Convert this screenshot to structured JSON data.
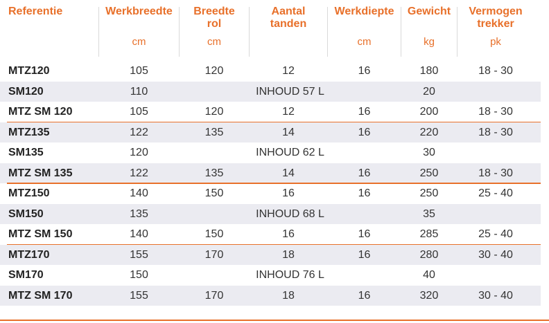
{
  "header": {
    "referentie": "Referentie",
    "werkbreedte": "Werkbreedte",
    "werkbreedte_unit": "cm",
    "breedte_rol_1": "Breedte",
    "breedte_rol_2": "rol",
    "breedte_rol_unit": "cm",
    "aantal_1": "Aantal",
    "aantal_2": "tanden",
    "werkdiepte": "Werkdiepte",
    "werkdiepte_unit": "cm",
    "gewicht": "Gewicht",
    "gewicht_unit": "kg",
    "vermogen_1": "Vermogen",
    "vermogen_2": "trekker",
    "vermogen_unit": "pk"
  },
  "rows": [
    {
      "ref": "MTZ120",
      "werkbreedte": "105",
      "rol": "120",
      "tanden": "12",
      "diepte": "16",
      "gewicht": "180",
      "pk": "18 - 30"
    },
    {
      "ref": "SM120",
      "werkbreedte": "110",
      "inhoud": "INHOUD 57 L",
      "gewicht": "20"
    },
    {
      "ref": "MTZ SM 120",
      "werkbreedte": "105",
      "rol": "120",
      "tanden": "12",
      "diepte": "16",
      "gewicht": "200",
      "pk": "18 - 30"
    },
    {
      "ref": "MTZ135",
      "werkbreedte": "122",
      "rol": "135",
      "tanden": "14",
      "diepte": "16",
      "gewicht": "220",
      "pk": "18 - 30"
    },
    {
      "ref": "SM135",
      "werkbreedte": "120",
      "inhoud": "INHOUD 62 L",
      "gewicht": "30"
    },
    {
      "ref": "MTZ SM 135",
      "werkbreedte": "122",
      "rol": "135",
      "tanden": "14",
      "diepte": "16",
      "gewicht": "250",
      "pk": "18 - 30"
    },
    {
      "ref": "MTZ150",
      "werkbreedte": "140",
      "rol": "150",
      "tanden": "16",
      "diepte": "16",
      "gewicht": "250",
      "pk": "25 - 40"
    },
    {
      "ref": "SM150",
      "werkbreedte": "135",
      "inhoud": "INHOUD 68 L",
      "gewicht": "35"
    },
    {
      "ref": "MTZ SM 150",
      "werkbreedte": "140",
      "rol": "150",
      "tanden": "16",
      "diepte": "16",
      "gewicht": "285",
      "pk": "25 - 40"
    },
    {
      "ref": "MTZ170",
      "werkbreedte": "155",
      "rol": "170",
      "tanden": "18",
      "diepte": "16",
      "gewicht": "280",
      "pk": "30 - 40"
    },
    {
      "ref": "SM170",
      "werkbreedte": "150",
      "inhoud": "INHOUD 76 L",
      "gewicht": "40"
    },
    {
      "ref": "MTZ SM 170",
      "werkbreedte": "155",
      "rol": "170",
      "tanden": "18",
      "diepte": "16",
      "gewicht": "320",
      "pk": "30 - 40"
    }
  ],
  "colors": {
    "accent": "#e8702a",
    "shade": "#ebebf1"
  }
}
